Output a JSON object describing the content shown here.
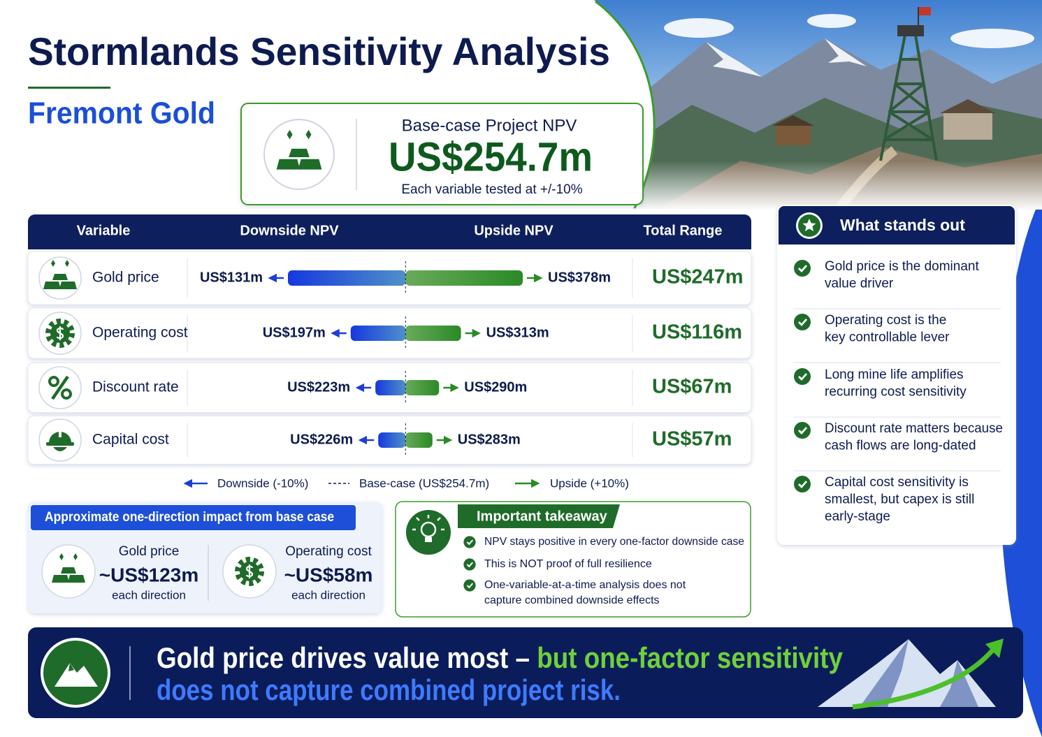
{
  "header": {
    "title": "Stormlands Sensitivity Analysis",
    "subtitle": "Fremont Gold"
  },
  "npv_card": {
    "label": "Base-case Project NPV",
    "value": "US$254.7m",
    "note": "Each variable tested at +/-10%"
  },
  "tornado": {
    "columns": [
      "Variable",
      "Downside NPV",
      "Upside NPV",
      "Total Range"
    ],
    "base": 254.7,
    "rows": [
      {
        "variable": "Gold price",
        "low": 131,
        "low_label": "US$131m",
        "high": 378,
        "high_label": "US$378m",
        "range": "US$247m"
      },
      {
        "variable": "Operating cost",
        "low": 197,
        "low_label": "US$197m",
        "high": 313,
        "high_label": "US$313m",
        "range": "US$116m"
      },
      {
        "variable": "Discount rate",
        "low": 223,
        "low_label": "US$223m",
        "high": 290,
        "high_label": "US$290m",
        "range": "US$67m"
      },
      {
        "variable": "Capital cost",
        "low": 226,
        "low_label": "US$226m",
        "high": 283,
        "high_label": "US$283m",
        "range": "US$57m"
      }
    ],
    "legend": {
      "downside": "Downside (-10%)",
      "base_case": "Base-case (US$254.7m)",
      "upside": "Upside (+10%)"
    }
  },
  "impact": {
    "title": "Approximate one-direction impact from base case",
    "items": [
      {
        "name": "Gold price",
        "value": "~US$123m",
        "note": "each direction"
      },
      {
        "name": "Operating cost",
        "value": "~US$58m",
        "note": "each direction"
      }
    ]
  },
  "takeaway": {
    "title": "Important takeaway",
    "points": [
      [
        "NPV stays positive in every one-factor downside case"
      ],
      [
        "This is NOT proof of full resilience"
      ],
      [
        "One-variable-at-a-time analysis does not",
        "capture combined downside effects"
      ]
    ]
  },
  "stands_out": {
    "title": "What stands out",
    "points": [
      [
        "Gold price is the dominant",
        "value driver"
      ],
      [
        "Operating cost is the",
        "key controllable lever"
      ],
      [
        "Long mine life amplifies",
        "recurring cost sensitivity"
      ],
      [
        "Discount rate matters because",
        "cash flows are long-dated"
      ],
      [
        "Capital cost sensitivity is",
        "smallest, but capex is still",
        "early-stage"
      ]
    ]
  },
  "banner": {
    "lead": "Gold price drives value most – ",
    "accent": "but one-factor sensitivity",
    "line2": "does not capture combined project risk."
  }
}
